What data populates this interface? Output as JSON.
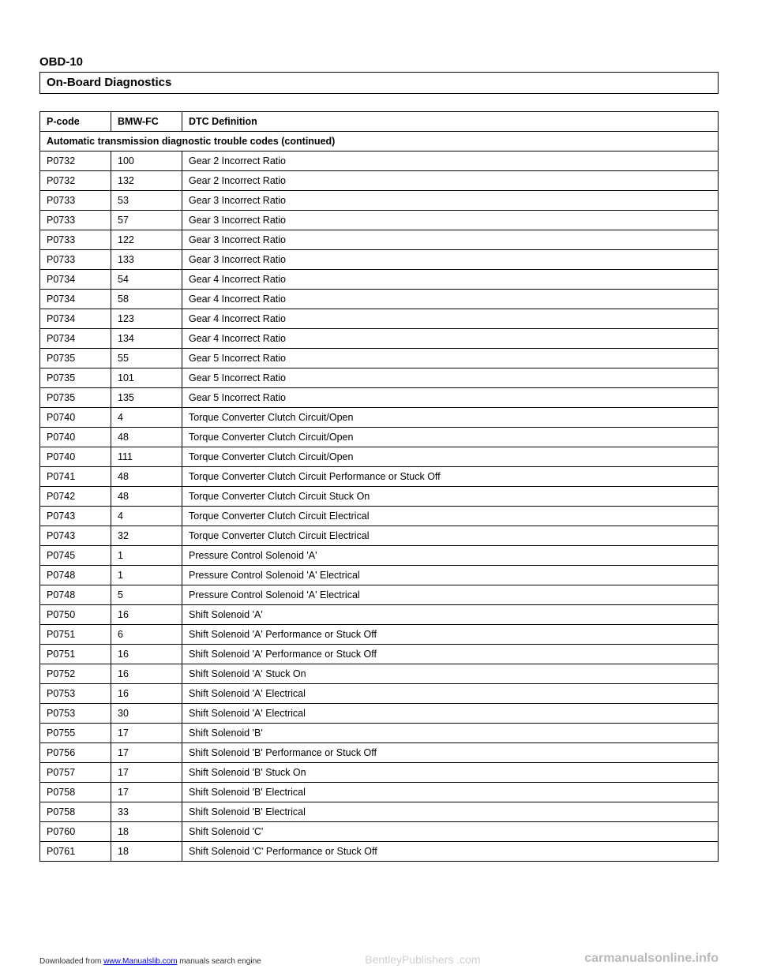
{
  "header": {
    "page_code": "OBD-10",
    "section_title": "On-Board Diagnostics"
  },
  "table": {
    "caption": "Automatic transmission diagnostic trouble codes (continued)",
    "columns": [
      "P-code",
      "BMW-FC",
      "DTC Definition"
    ],
    "rows": [
      [
        "P0732",
        "100",
        "Gear 2 Incorrect Ratio"
      ],
      [
        "P0732",
        "132",
        "Gear 2 Incorrect Ratio"
      ],
      [
        "P0733",
        "53",
        "Gear 3 Incorrect Ratio"
      ],
      [
        "P0733",
        "57",
        "Gear 3 Incorrect Ratio"
      ],
      [
        "P0733",
        "122",
        "Gear 3 Incorrect Ratio"
      ],
      [
        "P0733",
        "133",
        "Gear 3 Incorrect Ratio"
      ],
      [
        "P0734",
        "54",
        "Gear 4 Incorrect Ratio"
      ],
      [
        "P0734",
        "58",
        "Gear 4 Incorrect Ratio"
      ],
      [
        "P0734",
        "123",
        "Gear 4 Incorrect Ratio"
      ],
      [
        "P0734",
        "134",
        "Gear 4 Incorrect Ratio"
      ],
      [
        "P0735",
        "55",
        "Gear 5 Incorrect Ratio"
      ],
      [
        "P0735",
        "101",
        "Gear 5 Incorrect Ratio"
      ],
      [
        "P0735",
        "135",
        "Gear 5 Incorrect Ratio"
      ],
      [
        "P0740",
        "4",
        "Torque Converter Clutch Circuit/Open"
      ],
      [
        "P0740",
        "48",
        "Torque Converter Clutch Circuit/Open"
      ],
      [
        "P0740",
        "111",
        "Torque Converter Clutch Circuit/Open"
      ],
      [
        "P0741",
        "48",
        "Torque Converter Clutch Circuit Performance or Stuck Off"
      ],
      [
        "P0742",
        "48",
        "Torque Converter Clutch Circuit Stuck On"
      ],
      [
        "P0743",
        "4",
        "Torque Converter Clutch Circuit Electrical"
      ],
      [
        "P0743",
        "32",
        "Torque Converter Clutch Circuit Electrical"
      ],
      [
        "P0745",
        "1",
        "Pressure Control Solenoid 'A'"
      ],
      [
        "P0748",
        "1",
        "Pressure Control Solenoid 'A' Electrical"
      ],
      [
        "P0748",
        "5",
        "Pressure Control Solenoid 'A' Electrical"
      ],
      [
        "P0750",
        "16",
        "Shift Solenoid 'A'"
      ],
      [
        "P0751",
        "6",
        "Shift Solenoid 'A' Performance or Stuck Off"
      ],
      [
        "P0751",
        "16",
        "Shift Solenoid 'A' Performance or Stuck Off"
      ],
      [
        "P0752",
        "16",
        "Shift Solenoid 'A' Stuck On"
      ],
      [
        "P0753",
        "16",
        "Shift Solenoid 'A' Electrical"
      ],
      [
        "P0753",
        "30",
        "Shift Solenoid 'A' Electrical"
      ],
      [
        "P0755",
        "17",
        "Shift Solenoid 'B'"
      ],
      [
        "P0756",
        "17",
        "Shift Solenoid 'B' Performance or Stuck Off"
      ],
      [
        "P0757",
        "17",
        "Shift Solenoid 'B' Stuck On"
      ],
      [
        "P0758",
        "17",
        "Shift Solenoid 'B' Electrical"
      ],
      [
        "P0758",
        "33",
        "Shift Solenoid 'B' Electrical"
      ],
      [
        "P0760",
        "18",
        "Shift Solenoid 'C'"
      ],
      [
        "P0761",
        "18",
        "Shift Solenoid 'C' Performance or Stuck Off"
      ]
    ]
  },
  "footer": {
    "downloaded_prefix": "Downloaded from ",
    "downloaded_link": "www.Manualslib.com",
    "downloaded_suffix": " manuals search engine",
    "watermark_mid": "BentleyPublishers\n.com",
    "watermark_right": "carmanualsonline.info"
  }
}
